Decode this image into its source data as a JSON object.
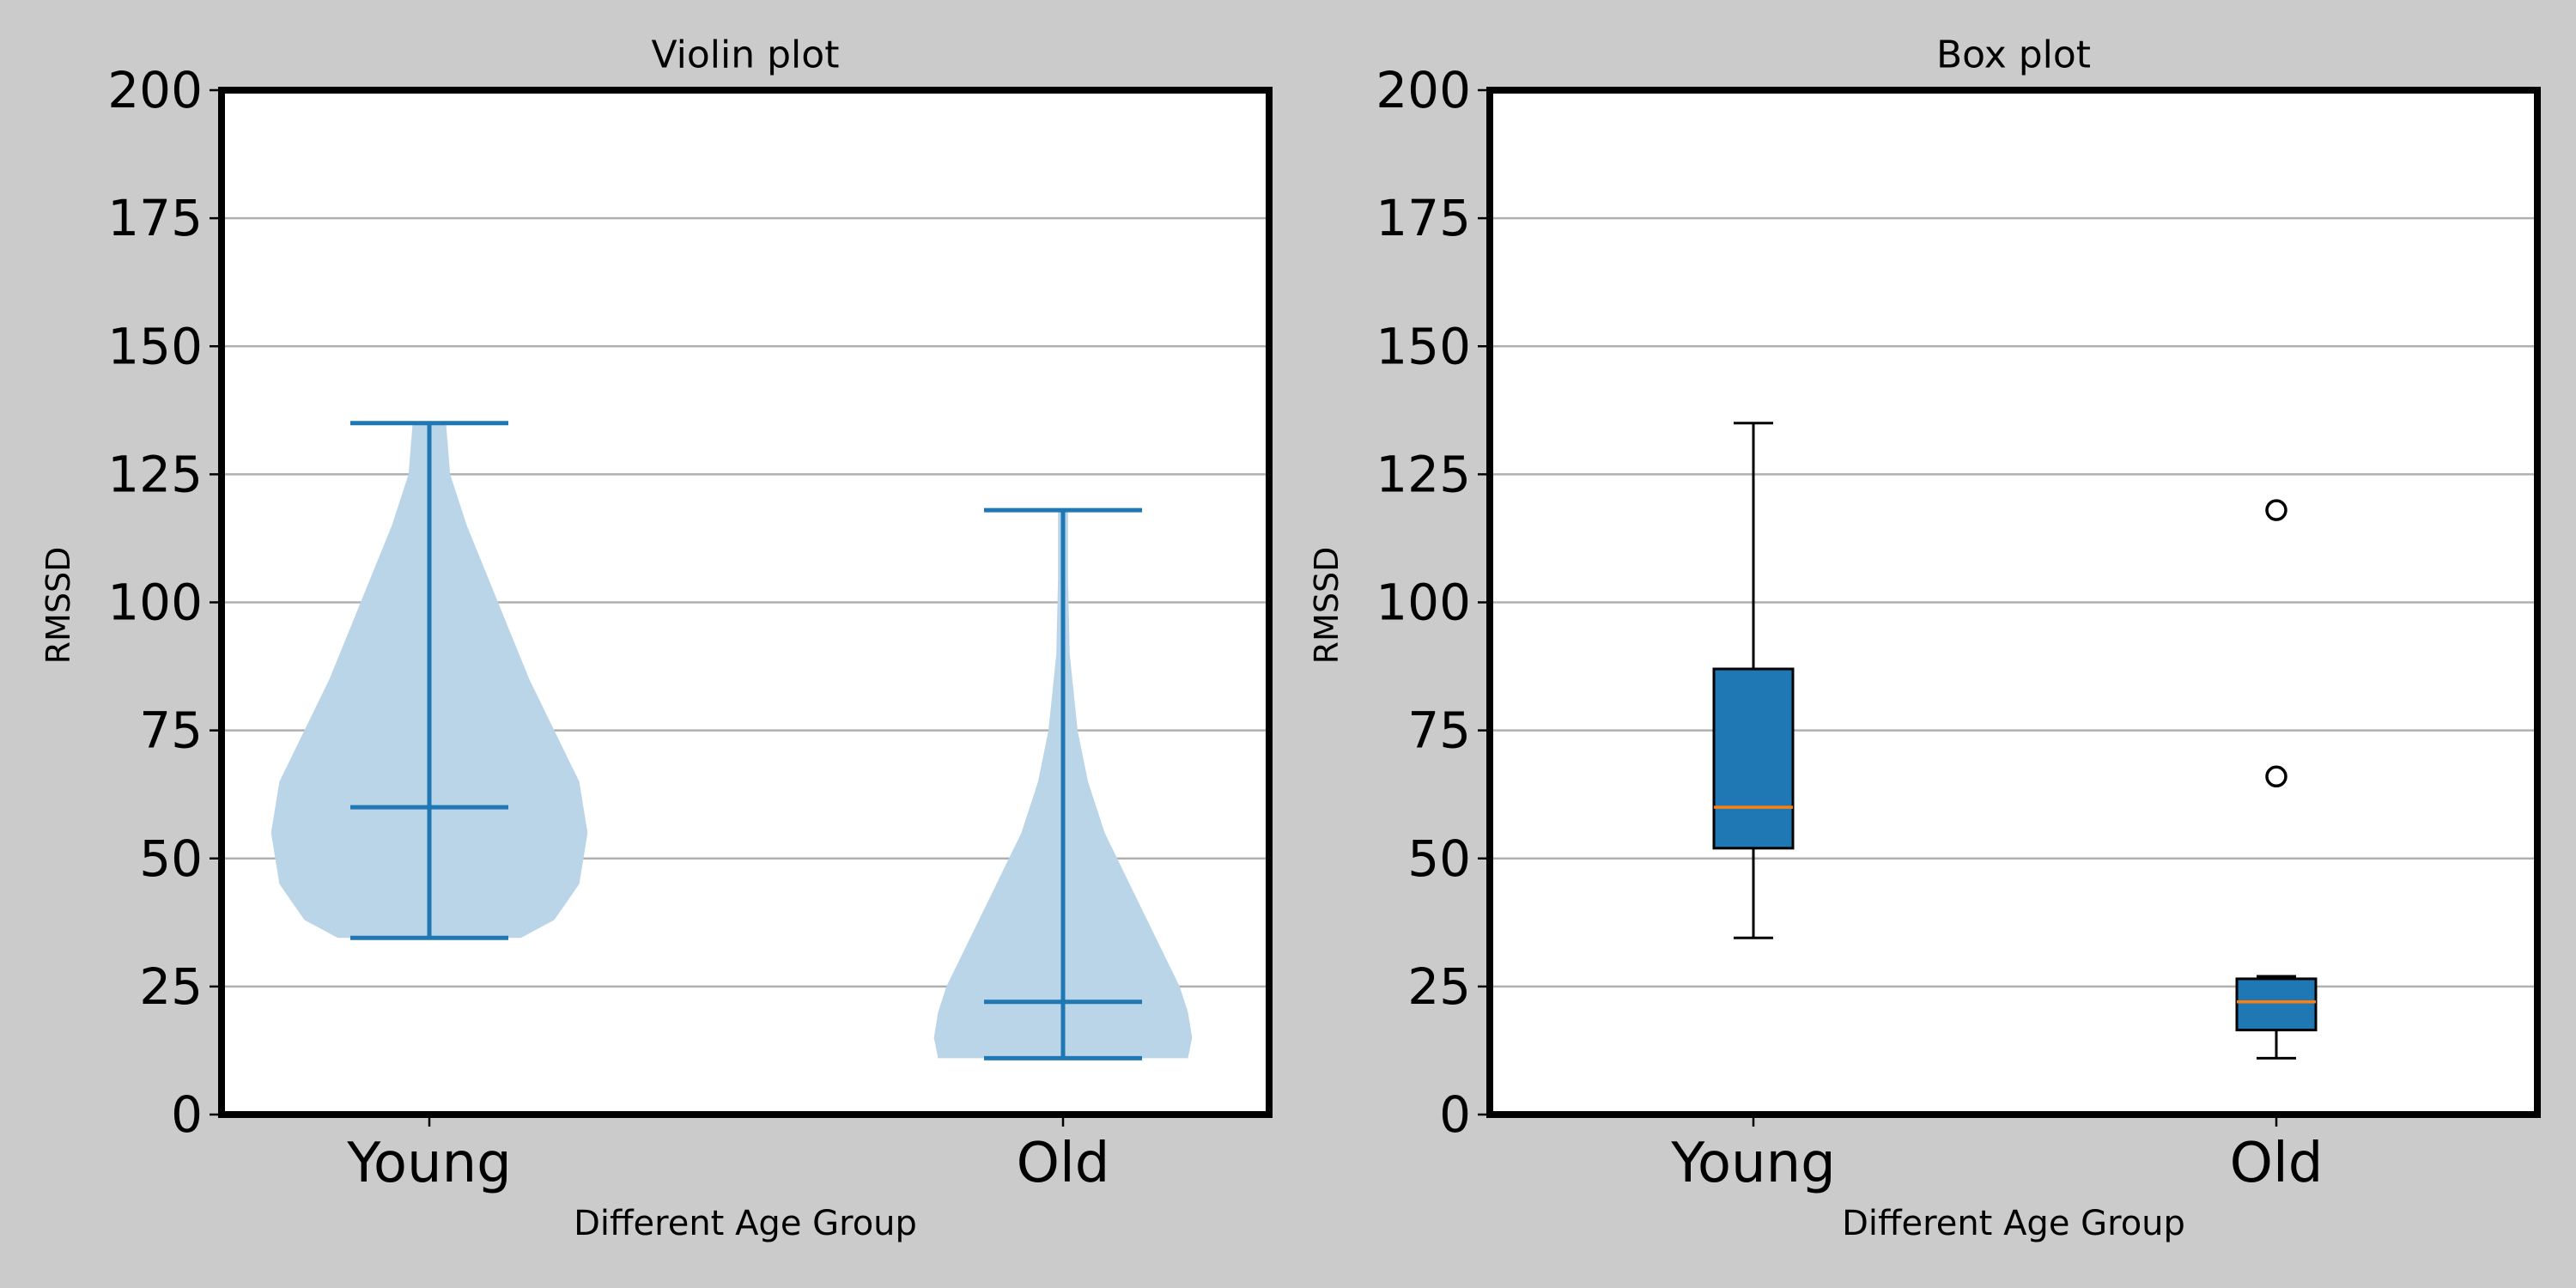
{
  "figure": {
    "background": "#cbcbcb"
  },
  "chart_data": [
    {
      "type": "violin",
      "title": "Violin plot",
      "xlabel": "Different Age Group",
      "ylabel": "RMSSD",
      "categories": [
        "Young",
        "Old"
      ],
      "ylim": [
        0,
        200
      ],
      "yticks": [
        0,
        25,
        50,
        75,
        100,
        125,
        150,
        175,
        200
      ],
      "grid": "y",
      "colors": {
        "body": "#bbd5e8",
        "lines": "#1f77b4"
      },
      "violins": [
        {
          "category": "Young",
          "min": 34.5,
          "median": 60,
          "max": 135,
          "density": [
            [
              34.5,
              22
            ],
            [
              38,
              30
            ],
            [
              45,
              36
            ],
            [
              55,
              38
            ],
            [
              65,
              36
            ],
            [
              75,
              30
            ],
            [
              85,
              24
            ],
            [
              95,
              19
            ],
            [
              105,
              14
            ],
            [
              115,
              9
            ],
            [
              125,
              5
            ],
            [
              135,
              4
            ]
          ]
        },
        {
          "category": "Old",
          "min": 11,
          "median": 22,
          "max": 118,
          "density": [
            [
              11,
              30
            ],
            [
              15,
              31
            ],
            [
              20,
              30
            ],
            [
              25,
              28
            ],
            [
              35,
              22
            ],
            [
              45,
              16
            ],
            [
              55,
              10
            ],
            [
              65,
              6
            ],
            [
              75,
              3.5
            ],
            [
              90,
              1.6
            ],
            [
              105,
              1.2
            ],
            [
              118,
              1.2
            ]
          ]
        }
      ]
    },
    {
      "type": "box",
      "title": "Box plot",
      "xlabel": "Different Age Group",
      "ylabel": "RMSSD",
      "categories": [
        "Young",
        "Old"
      ],
      "ylim": [
        0,
        200
      ],
      "yticks": [
        0,
        25,
        50,
        75,
        100,
        125,
        150,
        175,
        200
      ],
      "grid": "y",
      "colors": {
        "box": "#1f77b4",
        "median": "#ff7f0e",
        "whisker": "#000000"
      },
      "boxes": [
        {
          "category": "Young",
          "whisker_low": 34.5,
          "q1": 52,
          "median": 60,
          "q3": 87,
          "whisker_high": 135,
          "outliers": []
        },
        {
          "category": "Old",
          "whisker_low": 11,
          "q1": 16.5,
          "median": 22,
          "q3": 26.5,
          "whisker_high": 27,
          "outliers": [
            66,
            118
          ]
        }
      ]
    }
  ]
}
